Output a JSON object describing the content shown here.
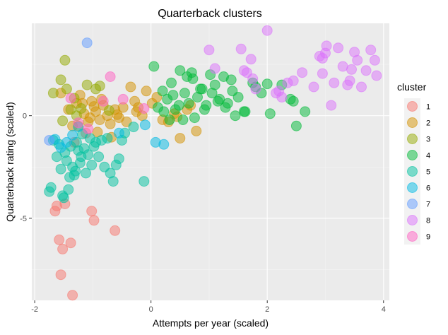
{
  "chart_data": {
    "type": "scatter",
    "title": "Quarterback clusters",
    "xlabel": "Attempts per year (scaled)",
    "ylabel": "Quarterback rating (scaled)",
    "xlim": [
      -2.05,
      4.1
    ],
    "ylim": [
      -9.0,
      4.5
    ],
    "xticks": [
      -2,
      0,
      2,
      4
    ],
    "yticks": [
      -5,
      0
    ],
    "grid": true,
    "legend": {
      "title": "cluster",
      "position": "right"
    },
    "series": [
      {
        "name": "1",
        "color": "#F8766D",
        "x": [
          -1.65,
          -1.58,
          -1.52,
          -1.48,
          -1.38,
          -1.55,
          -1.62,
          -1.35,
          -1.02,
          -0.98,
          -0.62,
          -1.32,
          -1.12
        ],
        "y": [
          -4.65,
          -6.05,
          -6.5,
          -4.3,
          -6.2,
          -7.75,
          -4.4,
          -8.75,
          -4.65,
          -5.1,
          -5.6,
          -1.3,
          -0.85
        ]
      },
      {
        "name": "2",
        "color": "#D39200",
        "x": [
          -1.55,
          -1.42,
          -1.35,
          -1.28,
          -1.22,
          -1.15,
          -1.08,
          -1.02,
          -0.95,
          -0.88,
          -0.82,
          -0.75,
          -0.7,
          -0.62,
          -0.55,
          -0.48,
          -0.42,
          -0.35,
          -0.28,
          -0.22,
          -0.15,
          -0.08,
          0.02,
          0.1,
          0.2,
          0.3,
          0.4,
          0.5,
          0.62,
          0.78,
          -1.18,
          -1.05,
          -0.92,
          -0.85,
          -0.68,
          -0.58,
          0.45,
          -0.25,
          0.68,
          -1.25,
          -0.98
        ],
        "y": [
          1.1,
          0.3,
          -0.5,
          0.6,
          1.0,
          0.1,
          -0.3,
          0.7,
          0.2,
          -0.2,
          0.5,
          0.0,
          -0.4,
          0.3,
          -0.1,
          0.4,
          -0.3,
          1.4,
          0.7,
          0.4,
          0.0,
          1.2,
          0.6,
          0.9,
          -0.2,
          -0.3,
          0.1,
          -1.1,
          0.3,
          -0.75,
          0.6,
          -0.1,
          -0.8,
          0.8,
          -1.05,
          0.05,
          -0.05,
          0.2,
          0.5,
          -0.5,
          0.45
        ]
      },
      {
        "name": "3",
        "color": "#93AA00",
        "x": [
          -1.68,
          -1.55,
          -1.48,
          -1.45,
          -1.38,
          -1.28,
          -1.1,
          -0.88,
          -1.52,
          -1.32,
          -1.2,
          -0.95,
          -0.72
        ],
        "y": [
          1.1,
          1.75,
          2.7,
          1.3,
          0.3,
          0.0,
          1.5,
          1.45,
          -0.25,
          0.85,
          0.35,
          1.3,
          0.25
        ]
      },
      {
        "name": "4",
        "color": "#00BA38",
        "x": [
          0.05,
          0.12,
          0.2,
          0.28,
          0.35,
          0.42,
          0.5,
          0.58,
          0.65,
          0.72,
          0.8,
          0.88,
          0.95,
          1.02,
          1.1,
          1.18,
          1.25,
          1.32,
          1.4,
          1.5,
          1.62,
          1.75,
          1.9,
          2.05,
          2.25,
          2.5,
          2.65,
          0.32,
          0.48,
          0.62,
          0.75,
          0.92,
          1.05,
          1.28,
          1.45,
          1.8,
          2.4,
          0.22,
          0.38,
          0.55,
          0.7,
          0.85,
          1.15,
          1.38,
          1.6,
          2.0,
          2.45
        ],
        "y": [
          2.4,
          0.4,
          1.2,
          0.8,
          1.6,
          0.3,
          2.2,
          1.1,
          0.6,
          1.8,
          0.9,
          1.3,
          0.5,
          2.0,
          1.5,
          0.8,
          1.9,
          0.6,
          1.2,
          0.9,
          0.2,
          1.6,
          1.1,
          0.1,
          1.5,
          -0.5,
          0.2,
          -0.2,
          0.5,
          1.9,
          -0.1,
          0.3,
          1.1,
          0.4,
          0.0,
          1.4,
          0.8,
          0.2,
          1.0,
          -0.2,
          2.1,
          1.3,
          0.7,
          1.75,
          0.2,
          1.55,
          0.7
        ]
      },
      {
        "name": "5",
        "color": "#00C19F",
        "x": [
          -1.75,
          -1.72,
          -1.68,
          -1.62,
          -1.58,
          -1.55,
          -1.52,
          -1.48,
          -1.45,
          -1.42,
          -1.38,
          -1.35,
          -1.32,
          -1.28,
          -1.25,
          -1.22,
          -1.18,
          -1.15,
          -1.12,
          -1.08,
          -1.05,
          -1.02,
          -0.98,
          -0.95,
          -0.9,
          -0.85,
          -0.8,
          -0.75,
          -0.7,
          -0.65,
          -0.6,
          -0.55,
          -0.5,
          -0.45,
          -0.3,
          -0.12,
          -1.5,
          -1.4,
          -1.3,
          -1.2
        ],
        "y": [
          -3.7,
          -3.5,
          -1.2,
          -2.0,
          -1.4,
          -2.6,
          -3.9,
          -1.8,
          -2.2,
          -3.6,
          -1.5,
          -2.5,
          -2.9,
          -1.3,
          -1.7,
          -2.3,
          -0.9,
          -1.6,
          -2.8,
          -1.9,
          -1.1,
          -2.4,
          -1.5,
          -1.3,
          -2.0,
          -1.2,
          -2.5,
          -1.1,
          -2.8,
          -3.2,
          -2.4,
          -2.1,
          -1.2,
          -0.85,
          -0.55,
          -3.2,
          -4.0,
          -3.0,
          -2.7,
          -2.0
        ]
      },
      {
        "name": "6",
        "color": "#00B9E3",
        "x": [
          -1.65,
          -1.55,
          -1.45,
          -1.35,
          -1.25,
          -0.1,
          0.08,
          0.22,
          -0.55
        ],
        "y": [
          -1.15,
          -1.55,
          -1.3,
          -0.95,
          -0.55,
          -0.45,
          -1.3,
          -1.4,
          -0.85
        ]
      },
      {
        "name": "7",
        "color": "#619CFF",
        "x": [
          -1.1,
          -1.75
        ],
        "y": [
          3.55,
          -1.2
        ]
      },
      {
        "name": "8",
        "color": "#DB72FB",
        "x": [
          1.0,
          1.55,
          1.6,
          1.72,
          1.75,
          1.65,
          2.0,
          2.15,
          2.25,
          2.35,
          2.45,
          2.6,
          2.8,
          2.9,
          2.95,
          3.02,
          3.1,
          3.15,
          3.22,
          3.3,
          3.38,
          3.42,
          3.5,
          3.55,
          3.62,
          3.7,
          3.78,
          3.85,
          3.88,
          1.1,
          1.8,
          2.2,
          3.0,
          2.95,
          3.45
        ],
        "y": [
          3.2,
          3.25,
          2.2,
          2.75,
          1.8,
          2.1,
          4.15,
          1.1,
          0.9,
          1.6,
          1.7,
          2.1,
          1.4,
          2.9,
          2.8,
          3.4,
          0.5,
          1.6,
          3.3,
          2.4,
          1.5,
          1.7,
          3.1,
          2.7,
          1.4,
          2.2,
          3.2,
          2.7,
          1.95,
          2.3,
          1.3,
          1.2,
          3.05,
          2.05,
          2.25
        ]
      },
      {
        "name": "9",
        "color": "#FF61C3",
        "x": [
          -1.38,
          -1.25,
          -1.08,
          -0.7,
          -0.48,
          -0.12,
          -0.82
        ],
        "y": [
          0.85,
          -0.35,
          -0.65,
          1.9,
          0.8,
          0.35,
          0.7
        ]
      }
    ]
  }
}
